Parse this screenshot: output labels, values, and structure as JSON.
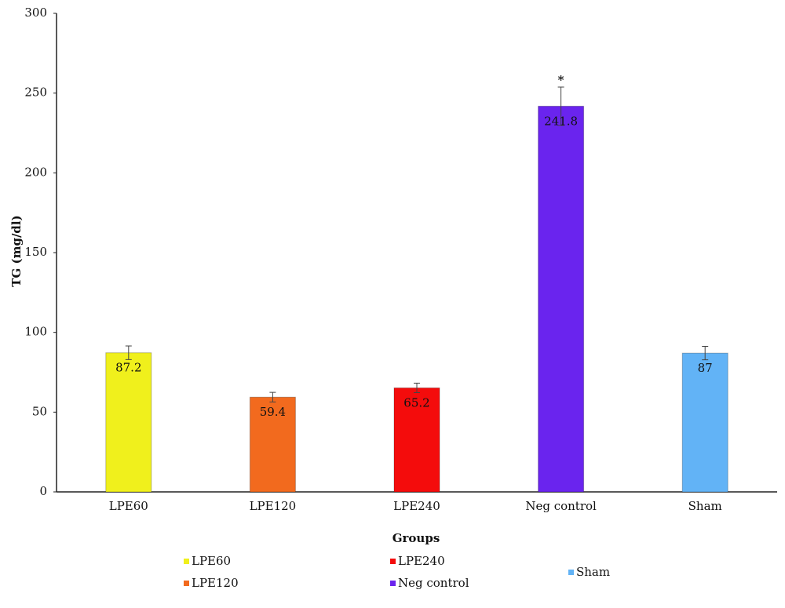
{
  "chart_data": {
    "type": "bar",
    "x_label": "Groups",
    "y_label": "TG (mg/dl)",
    "categories": [
      "LPE60",
      "LPE120",
      "LPE240",
      "Neg control",
      "Sham"
    ],
    "values": [
      87.2,
      59.4,
      65.2,
      241.8,
      87
    ],
    "errors": [
      4.3,
      3,
      3,
      12,
      4.2
    ],
    "colors": [
      "#f0f01c",
      "#f26a1e",
      "#f40c0c",
      "#6a24ee",
      "#62b3f6"
    ],
    "annotations": [
      {
        "text": "*",
        "x": "Neg control"
      }
    ],
    "ylim": [
      0,
      300
    ],
    "yticks": [
      0,
      50,
      100,
      150,
      200,
      250,
      300
    ],
    "grid": false,
    "legend": "bottom"
  }
}
